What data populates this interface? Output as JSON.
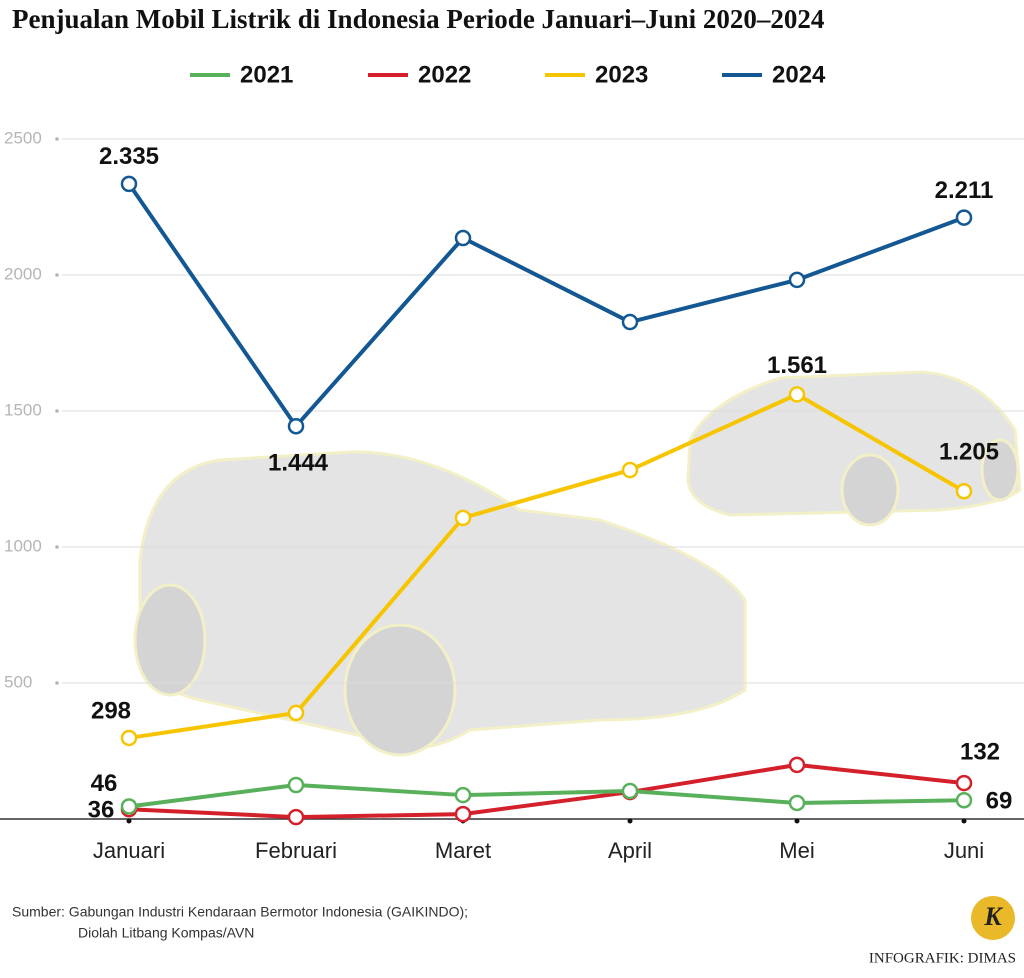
{
  "chart_data": {
    "type": "line",
    "title": "Penjualan Mobil Listrik di Indonesia Periode Januari–Juni 2020–2024",
    "categories": [
      "Januari",
      "Februari",
      "Maret",
      "April",
      "Mei",
      "Juni"
    ],
    "series": [
      {
        "name": "2021",
        "color": "#58b05a",
        "values": [
          46,
          125,
          88,
          103,
          59,
          69
        ],
        "value_labels": [
          "46",
          null,
          null,
          null,
          null,
          "69"
        ]
      },
      {
        "name": "2022",
        "color": "#d3202b",
        "values": [
          36,
          7,
          18,
          99,
          199,
          132
        ],
        "value_labels": [
          "36",
          null,
          null,
          null,
          null,
          "132"
        ]
      },
      {
        "name": "2023",
        "color": "#f7c500",
        "values": [
          298,
          390,
          1107,
          1283,
          1561,
          1205
        ],
        "value_labels": [
          "298",
          null,
          null,
          null,
          "1.561",
          "1.205"
        ]
      },
      {
        "name": "2024",
        "color": "#135893",
        "values": [
          2335,
          1444,
          2136,
          1827,
          1982,
          2211
        ],
        "value_labels": [
          "2.335",
          "1.444",
          null,
          null,
          null,
          "2.211"
        ]
      }
    ],
    "ylim": [
      0,
      2500
    ],
    "yticks": [
      500,
      1000,
      1500,
      2000,
      2500
    ],
    "grid": true,
    "source": [
      "Sumber: Gabungan Industri Kendaraan Bermotor Indonesia (GAIKINDO);",
      "Diolah Litbang Kompas/AVN"
    ],
    "logo": "K",
    "credit": "INFOGRAFIK: DIMAS"
  }
}
